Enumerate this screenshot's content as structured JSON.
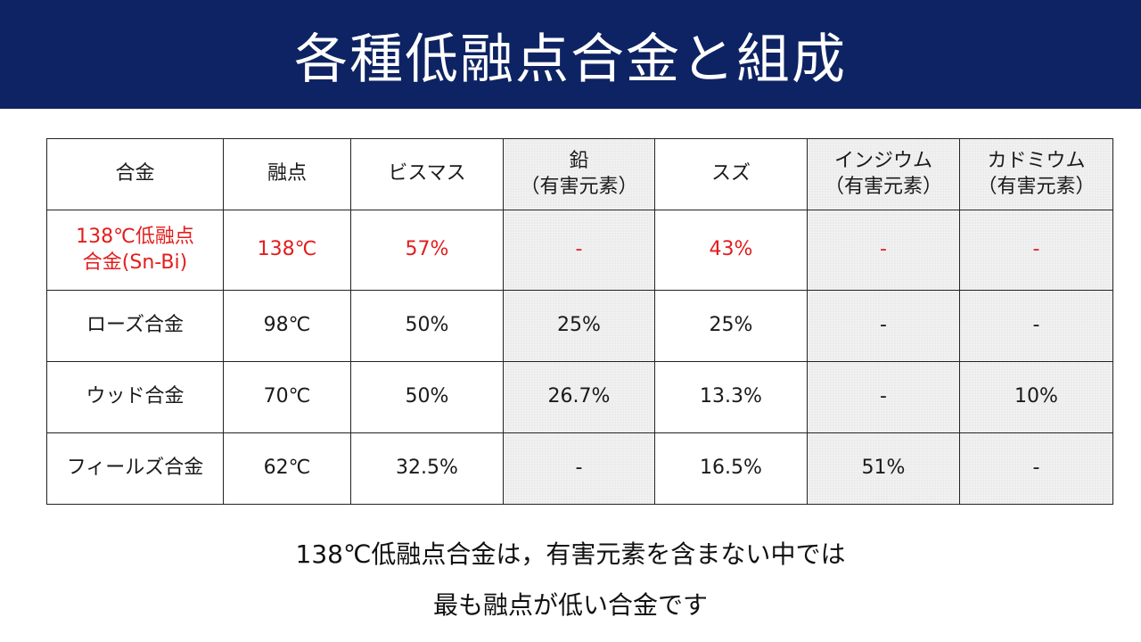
{
  "title": "各種低融点合金と組成",
  "colors": {
    "title_bar": "#0e2363",
    "title_text": "#ffffff",
    "highlight": "#e31d1d",
    "shaded_column": "#f1f1f1"
  },
  "table": {
    "headers": [
      {
        "line1": "合金",
        "line2": ""
      },
      {
        "line1": "融点",
        "line2": ""
      },
      {
        "line1": "ビスマス",
        "line2": ""
      },
      {
        "line1": "鉛",
        "line2": "（有害元素）"
      },
      {
        "line1": "スズ",
        "line2": ""
      },
      {
        "line1": "インジウム",
        "line2": "（有害元素）"
      },
      {
        "line1": "カドミウム",
        "line2": "（有害元素）"
      }
    ],
    "shaded_columns": [
      3,
      5,
      6
    ],
    "rows": [
      {
        "highlight": true,
        "name_line1": "138℃低融点",
        "name_line2": "合金(Sn-Bi)",
        "melting_point": "138℃",
        "bismuth": "57%",
        "lead": "-",
        "tin": "43%",
        "indium": "-",
        "cadmium": "-"
      },
      {
        "highlight": false,
        "name_line1": "ローズ合金",
        "name_line2": "",
        "melting_point": "98℃",
        "bismuth": "50%",
        "lead": "25%",
        "tin": "25%",
        "indium": "-",
        "cadmium": "-"
      },
      {
        "highlight": false,
        "name_line1": "ウッド合金",
        "name_line2": "",
        "melting_point": "70℃",
        "bismuth": "50%",
        "lead": "26.7%",
        "tin": "13.3%",
        "indium": "-",
        "cadmium": "10%"
      },
      {
        "highlight": false,
        "name_line1": "フィールズ合金",
        "name_line2": "",
        "melting_point": "62℃",
        "bismuth": "32.5%",
        "lead": "-",
        "tin": "16.5%",
        "indium": "51%",
        "cadmium": "-"
      }
    ]
  },
  "footer": {
    "line1": "138℃低融点合金は，有害元素を含まない中では",
    "line2": "最も融点が低い合金です"
  }
}
